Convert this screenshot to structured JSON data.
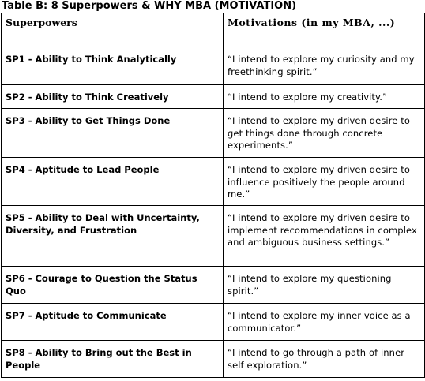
{
  "caption": "Table B: 8 Superpowers & WHY MBA (MOTIVATION)",
  "headers": {
    "superpowers": "Superpowers",
    "motivations": "Motivations (in my MBA, ...)"
  },
  "rows": [
    {
      "superpower": "SP1 - Ability to Think Analytically",
      "motivation": "“I intend to explore my curiosity and my freethinking spirit.”"
    },
    {
      "superpower": "SP2 - Ability to Think Creatively",
      "motivation": "“I intend to explore my creativity.”"
    },
    {
      "superpower": "SP3 - Ability to Get Things Done",
      "motivation": "“I intend to explore my driven desire to get things done through concrete experiments.”"
    },
    {
      "superpower": "SP4 - Aptitude to Lead People",
      "motivation": "“I intend to explore my driven desire to influence positively the people around me.”"
    },
    {
      "superpower": "SP5 - Ability to Deal with Uncertainty, Diversity, and Frustration",
      "motivation": "“I intend to explore my driven desire to implement recommendations in complex and ambiguous business settings.”"
    },
    {
      "superpower": "SP6 - Courage to Question the Status Quo",
      "motivation": "“I intend to explore my questioning spirit.”"
    },
    {
      "superpower": "SP7 - Aptitude to Communicate",
      "motivation": "“I intend to explore my inner voice as a communicator.”"
    },
    {
      "superpower": "SP8 - Ability to Bring out the Best in People",
      "motivation": "“I intend to go through a path of inner self exploration.”"
    }
  ]
}
